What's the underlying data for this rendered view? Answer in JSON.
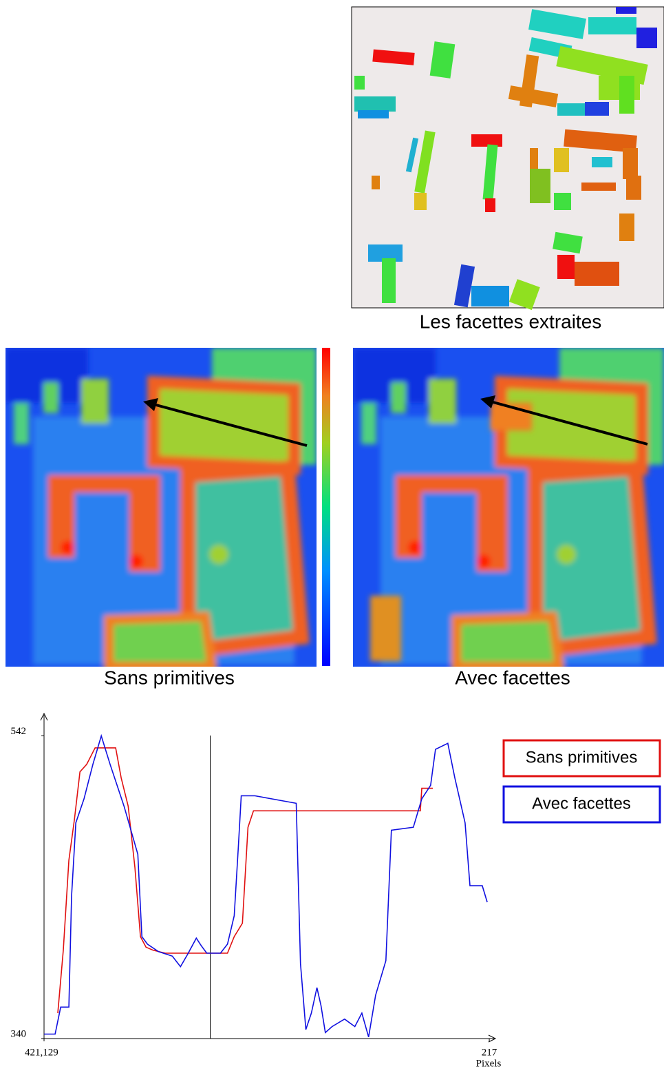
{
  "captions": {
    "facets": "Les facettes extraites",
    "left_map": "Sans primitives",
    "right_map": "Avec facettes"
  },
  "chart_data": {
    "type": "line",
    "xlim": [
      0,
      220
    ],
    "ylim": [
      340,
      556
    ],
    "xticks": [
      {
        "value": 0,
        "label": "421,129"
      },
      217
    ],
    "yticks": [
      340,
      542
    ],
    "x_label": "Pixels",
    "vline": 81,
    "series": [
      {
        "name": "Sans primitives",
        "color": "#e01010",
        "x": [
          6.7,
          9.4,
          12.1,
          14.8,
          17.5,
          20.8,
          24.9,
          28.9,
          34.9,
          37.6,
          41.0,
          44.3,
          47.0,
          49.7,
          53.1,
          59.1,
          75.9,
          89.4,
          92.7,
          96.7,
          99.4,
          102.1,
          106.1,
          146.5,
          183.4,
          184.1,
          189.5
        ],
        "values": [
          357,
          399,
          459,
          486,
          518,
          523,
          534,
          534,
          534,
          514,
          495,
          454,
          408,
          401,
          399,
          397,
          397,
          397,
          408,
          417,
          481,
          492,
          492,
          492,
          492,
          507,
          507
        ]
      },
      {
        "name": "Avec facettes",
        "color": "#1010e0",
        "x": [
          0,
          5.4,
          8.1,
          12.1,
          13.4,
          15.5,
          19.5,
          23.8,
          27.9,
          32.2,
          39.0,
          45.7,
          47.7,
          50.4,
          55.8,
          62.5,
          66.5,
          69.9,
          74.2,
          76.6,
          79.3,
          86.0,
          89.4,
          92.7,
          94.7,
          96.1,
          102.8,
          122.9,
          125.0,
          127.6,
          130.3,
          133.0,
          135.0,
          137.1,
          140.4,
          146.5,
          151.5,
          154.9,
          158.2,
          161.6,
          166.6,
          169.3,
          180.0,
          184.1,
          188.4,
          190.8,
          196.8,
          200.2,
          205.2,
          207.6,
          213.6,
          216.0
        ],
        "values": [
          343,
          343,
          361,
          361,
          435,
          484,
          500,
          523,
          542,
          523,
          495,
          463,
          408,
          403,
          398,
          395,
          388,
          396,
          407,
          402,
          397,
          397,
          403,
          422,
          468,
          502,
          502,
          497,
          390,
          346,
          357,
          374,
          362,
          344,
          348,
          353,
          348,
          357,
          341,
          369,
          392,
          479,
          481,
          500,
          509,
          533,
          537,
          514,
          484,
          442,
          442,
          431
        ]
      }
    ]
  }
}
